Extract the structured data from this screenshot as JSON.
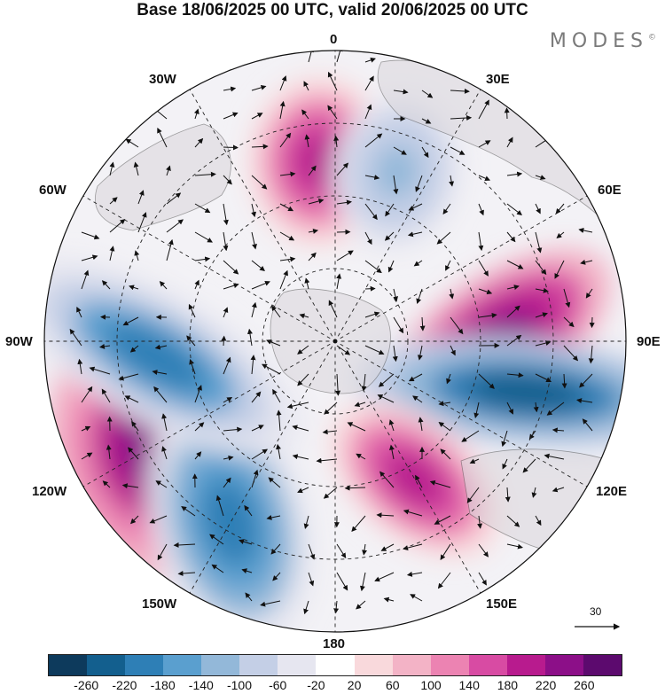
{
  "title": "Base 18/06/2025 00 UTC, valid 20/06/2025 00 UTC",
  "brand": "MODES",
  "brand_mark": "©",
  "longitude_labels": {
    "lon_0": "0",
    "lon_30e": "30E",
    "lon_60e": "60E",
    "lon_90e": "90E",
    "lon_120e": "120E",
    "lon_150e": "150E",
    "lon_180": "180",
    "lon_150w": "150W",
    "lon_120w": "120W",
    "lon_90w": "90W",
    "lon_60w": "60W",
    "lon_30w": "30W"
  },
  "reference_vector": {
    "label": "30"
  },
  "colorbar": {
    "colors": [
      "#0d3a5c",
      "#135f8e",
      "#2e7fb6",
      "#5a9fcf",
      "#93b8d9",
      "#c4cfe6",
      "#e6e6f0",
      "#ffffff",
      "#f9d9dc",
      "#f3b3c6",
      "#ec83b2",
      "#d84ba3",
      "#b81b8e",
      "#8c0f88",
      "#5c0a6e"
    ],
    "ticks": [
      "-260",
      "-220",
      "-180",
      "-140",
      "-100",
      "-60",
      "-20",
      "20",
      "60",
      "100",
      "140",
      "180",
      "220",
      "260"
    ]
  },
  "anomaly_blobs": [
    {
      "name": "anomaly-blob-east-positive",
      "value": 260,
      "lon": 90,
      "r_frac": 0.55
    },
    {
      "name": "anomaly-blob-east-negative",
      "value": -240,
      "lon": 105,
      "r_frac": 0.68
    },
    {
      "name": "anomaly-blob-west-positive",
      "value": 250,
      "lon": -120,
      "r_frac": 0.72
    },
    {
      "name": "anomaly-blob-west-negative",
      "value": -200,
      "lon": -150,
      "r_frac": 0.72
    },
    {
      "name": "anomaly-blob-northwest-negative",
      "value": -180,
      "lon": -95,
      "r_frac": 0.62
    },
    {
      "name": "anomaly-blob-north-positive",
      "value": 200,
      "lon": -5,
      "r_frac": 0.62
    },
    {
      "name": "anomaly-blob-north-negative",
      "value": -120,
      "lon": 20,
      "r_frac": 0.62
    },
    {
      "name": "anomaly-blob-southeast-positive",
      "value": 200,
      "lon": 150,
      "r_frac": 0.55
    }
  ]
}
